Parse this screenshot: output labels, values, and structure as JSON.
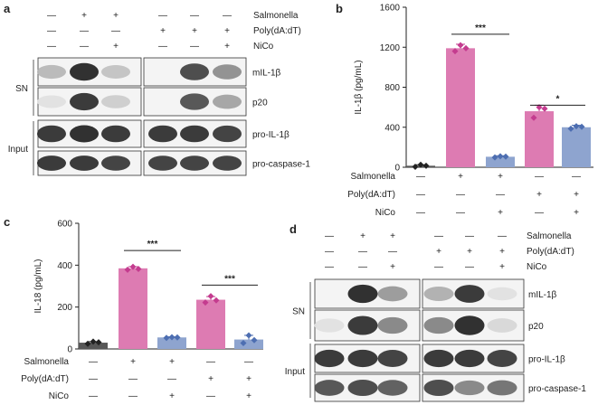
{
  "panels": {
    "a": {
      "letter": "a",
      "conditions": [
        {
          "label": "Salmonella",
          "signs": [
            "—",
            "+",
            "+",
            "—",
            "—",
            "—"
          ]
        },
        {
          "label": "Poly(dA:dT)",
          "signs": [
            "—",
            "—",
            "—",
            "+",
            "+",
            "+"
          ]
        },
        {
          "label": "NiCo",
          "signs": [
            "—",
            "—",
            "+",
            "—",
            "—",
            "+"
          ]
        }
      ],
      "group_labels": [
        "SN",
        "Input"
      ],
      "band_labels": [
        "mIL-1β",
        "p20",
        "pro-IL-1β",
        "pro-caspase-1"
      ],
      "bands": [
        [
          0.25,
          0.95,
          0.2,
          0.0,
          0.8,
          0.45
        ],
        [
          0.05,
          0.9,
          0.15,
          0.0,
          0.75,
          0.35
        ],
        [
          0.9,
          0.95,
          0.9,
          0.9,
          0.9,
          0.85
        ],
        [
          0.9,
          0.9,
          0.85,
          0.85,
          0.85,
          0.85
        ]
      ]
    },
    "d": {
      "letter": "d",
      "conditions": [
        {
          "label": "Salmonella",
          "signs": [
            "—",
            "+",
            "+",
            "—",
            "—",
            "—"
          ]
        },
        {
          "label": "Poly(dA:dT)",
          "signs": [
            "—",
            "—",
            "—",
            "+",
            "+",
            "+"
          ]
        },
        {
          "label": "NiCo",
          "signs": [
            "—",
            "—",
            "+",
            "—",
            "—",
            "+"
          ]
        }
      ],
      "group_labels": [
        "SN",
        "Input"
      ],
      "band_labels": [
        "mIL-1β",
        "p20",
        "pro-IL-1β",
        "pro-caspase-1"
      ],
      "bands": [
        [
          0.0,
          0.95,
          0.4,
          0.3,
          0.9,
          0.05
        ],
        [
          0.05,
          0.9,
          0.5,
          0.5,
          0.95,
          0.1
        ],
        [
          0.9,
          0.9,
          0.85,
          0.9,
          0.9,
          0.85
        ],
        [
          0.75,
          0.8,
          0.7,
          0.8,
          0.5,
          0.6
        ]
      ]
    }
  },
  "chart_data": [
    {
      "letter": "b",
      "type": "bar",
      "ylabel": "IL-1β (pg/mL)",
      "ylim": [
        0,
        1600
      ],
      "yticks": [
        0,
        400,
        800,
        1200,
        1600
      ],
      "values": [
        15,
        1190,
        105,
        560,
        400
      ],
      "errors": [
        10,
        40,
        10,
        60,
        20
      ],
      "points": [
        [
          5,
          25,
          15
        ],
        [
          1160,
          1220,
          1190
        ],
        [
          98,
          110,
          106
        ],
        [
          495,
          600,
          585
        ],
        [
          385,
          410,
          405
        ]
      ],
      "colors": [
        "#575757",
        "#dd7bb2",
        "#8ea4cf",
        "#dd7bb2",
        "#8ea4cf"
      ],
      "point_colors": [
        "#222222",
        "#c43c8f",
        "#4d6eb1",
        "#c43c8f",
        "#4d6eb1"
      ],
      "conditions": [
        {
          "label": "Salmonella",
          "signs": [
            "—",
            "+",
            "+",
            "—",
            "—"
          ]
        },
        {
          "label": "Poly(dA:dT)",
          "signs": [
            "—",
            "—",
            "—",
            "+",
            "+"
          ]
        },
        {
          "label": "NiCo",
          "signs": [
            "—",
            "—",
            "+",
            "—",
            "+"
          ]
        }
      ],
      "significance": [
        {
          "from": 1,
          "to": 2,
          "label": "***",
          "y": 1330
        },
        {
          "from": 3,
          "to": 4,
          "label": "*",
          "y": 620
        }
      ]
    },
    {
      "letter": "c",
      "type": "bar",
      "ylabel": "IL-18 (pg/mL)",
      "ylim": [
        0,
        600
      ],
      "yticks": [
        0,
        200,
        400,
        600
      ],
      "values": [
        30,
        385,
        55,
        235,
        45
      ],
      "errors": [
        5,
        8,
        3,
        15,
        20
      ],
      "points": [
        [
          25,
          35,
          32
        ],
        [
          378,
          392,
          382
        ],
        [
          53,
          56,
          55
        ],
        [
          222,
          252,
          232
        ],
        [
          28,
          65,
          42
        ]
      ],
      "colors": [
        "#575757",
        "#dd7bb2",
        "#8ea4cf",
        "#dd7bb2",
        "#8ea4cf"
      ],
      "point_colors": [
        "#222222",
        "#c43c8f",
        "#4d6eb1",
        "#c43c8f",
        "#4d6eb1"
      ],
      "conditions": [
        {
          "label": "Salmonella",
          "signs": [
            "—",
            "+",
            "+",
            "—",
            "—"
          ]
        },
        {
          "label": "Poly(dA:dT)",
          "signs": [
            "—",
            "—",
            "—",
            "+",
            "+"
          ]
        },
        {
          "label": "NiCo",
          "signs": [
            "—",
            "—",
            "+",
            "—",
            "+"
          ]
        }
      ],
      "significance": [
        {
          "from": 1,
          "to": 2,
          "label": "***",
          "y": 470
        },
        {
          "from": 3,
          "to": 4,
          "label": "***",
          "y": 305
        }
      ]
    }
  ]
}
